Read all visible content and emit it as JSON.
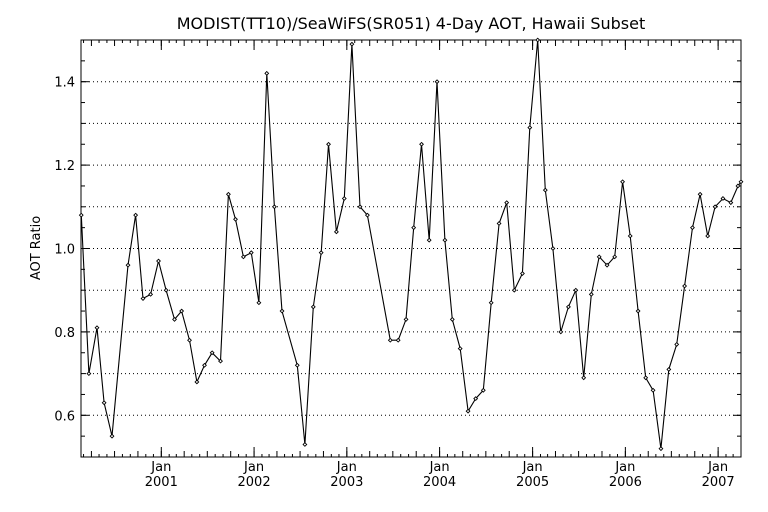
{
  "chart_data": {
    "type": "line",
    "title": "MODIST(TT10)/SeaWiFS(SR051) 4-Day AOT, Hawaii Subset",
    "xlabel": "",
    "ylabel": "AOT Ratio",
    "xlim": [
      "2000-02-20",
      "2007-04-01"
    ],
    "ylim": [
      0.5,
      1.5
    ],
    "yticks": [
      0.6,
      0.8,
      1.0,
      1.2,
      1.4
    ],
    "ytick_labels": [
      "0.6",
      "0.8",
      "1.0",
      "1.2",
      "1.4"
    ],
    "xticks": [
      {
        "date": "2001-01-01",
        "month": "Jan",
        "year": "2001"
      },
      {
        "date": "2002-01-01",
        "month": "Jan",
        "year": "2002"
      },
      {
        "date": "2003-01-01",
        "month": "Jan",
        "year": "2003"
      },
      {
        "date": "2004-01-01",
        "month": "Jan",
        "year": "2004"
      },
      {
        "date": "2005-01-01",
        "month": "Jan",
        "year": "2005"
      },
      {
        "date": "2006-01-01",
        "month": "Jan",
        "year": "2006"
      },
      {
        "date": "2007-01-01",
        "month": "Jan",
        "year": "2007"
      }
    ],
    "grid": true,
    "series": [
      {
        "x": [
          "2000-02-21",
          "2000-03-22",
          "2000-04-23",
          "2000-05-21",
          "2000-06-21",
          "2000-08-23",
          "2000-09-22",
          "2000-10-21",
          "2000-11-20",
          "2000-12-21",
          "2001-01-20",
          "2001-02-22",
          "2001-03-22",
          "2001-04-22",
          "2001-05-21",
          "2001-06-20",
          "2001-07-20",
          "2001-08-22",
          "2001-09-22",
          "2001-10-20",
          "2001-11-20",
          "2001-12-21",
          "2002-01-20",
          "2002-02-20",
          "2002-03-22",
          "2002-04-21",
          "2002-06-20",
          "2002-07-20",
          "2002-08-22",
          "2002-09-22",
          "2002-10-21",
          "2002-11-21",
          "2002-12-22",
          "2003-01-21",
          "2003-02-22",
          "2003-03-23",
          "2003-06-21",
          "2003-07-22",
          "2003-08-22",
          "2003-09-21",
          "2003-10-22",
          "2003-11-21",
          "2003-12-22",
          "2004-01-22",
          "2004-02-20",
          "2004-03-22",
          "2004-04-22",
          "2004-05-22",
          "2004-06-21",
          "2004-07-22",
          "2004-08-22",
          "2004-09-21",
          "2004-10-21",
          "2004-11-22",
          "2004-12-21",
          "2005-01-21",
          "2005-02-20",
          "2005-03-22",
          "2005-04-22",
          "2005-05-22",
          "2005-06-20",
          "2005-07-21",
          "2005-08-20",
          "2005-09-20",
          "2005-10-21",
          "2005-11-20",
          "2005-12-21",
          "2006-01-20",
          "2006-02-20",
          "2006-03-22",
          "2006-04-20",
          "2006-05-21",
          "2006-06-21",
          "2006-07-22",
          "2006-08-22",
          "2006-09-22",
          "2006-10-22",
          "2006-11-21",
          "2006-12-20",
          "2007-01-20",
          "2007-02-20",
          "2007-03-20",
          "2007-04-01"
        ],
        "values": [
          1.08,
          0.7,
          0.81,
          0.63,
          0.55,
          0.96,
          1.08,
          0.88,
          0.89,
          0.97,
          0.9,
          0.83,
          0.85,
          0.78,
          0.68,
          0.72,
          0.75,
          0.73,
          1.13,
          1.07,
          0.98,
          0.99,
          0.87,
          1.42,
          1.1,
          0.85,
          0.72,
          0.53,
          0.86,
          0.99,
          1.25,
          1.04,
          1.12,
          1.49,
          1.1,
          1.08,
          0.78,
          0.78,
          0.83,
          1.05,
          1.25,
          1.02,
          1.4,
          1.02,
          0.83,
          0.76,
          0.61,
          0.64,
          0.66,
          0.87,
          1.06,
          1.11,
          0.9,
          0.94,
          1.29,
          1.5,
          1.14,
          1.0,
          0.8,
          0.86,
          0.9,
          0.69,
          0.89,
          0.98,
          0.96,
          0.98,
          1.16,
          1.03,
          0.85,
          0.69,
          0.66,
          0.52,
          0.71,
          0.77,
          0.91,
          1.05,
          1.13,
          1.03,
          1.1,
          1.12,
          1.11,
          1.15,
          1.16
        ]
      }
    ]
  }
}
